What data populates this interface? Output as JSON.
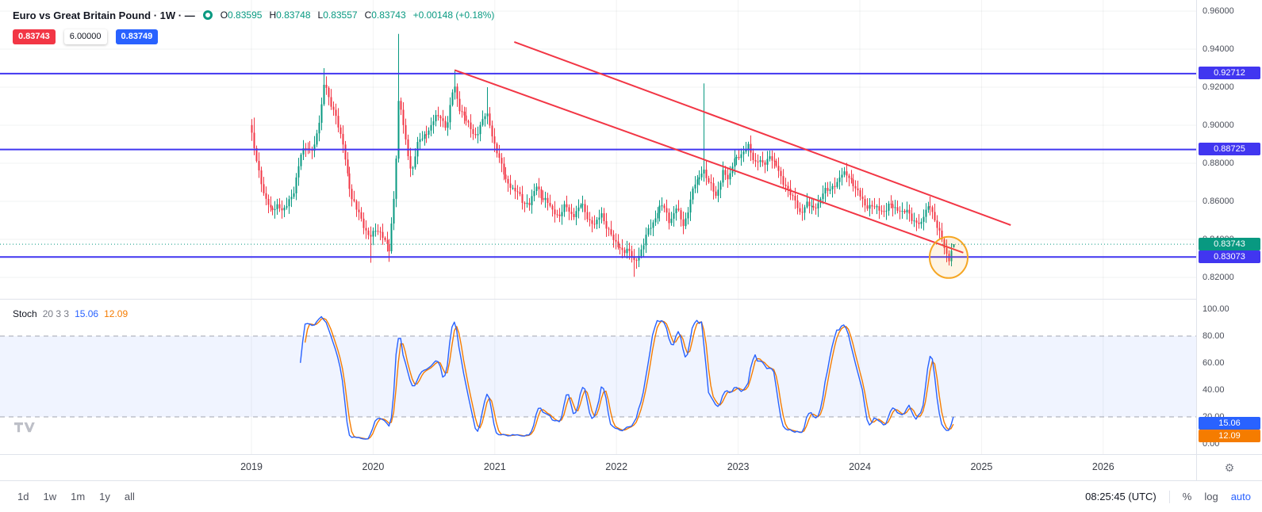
{
  "header": {
    "title": "Euro vs Great Britain Pound · 1W · —",
    "ohlc": {
      "o_label": "O",
      "o": "0.83595",
      "h_label": "H",
      "h": "0.83748",
      "l_label": "L",
      "l": "0.83557",
      "c_label": "C",
      "c": "0.83743",
      "change": "+0.00148 (+0.18%)"
    },
    "badges": {
      "sell": "0.83743",
      "spread": "6.00000",
      "buy": "0.83749"
    }
  },
  "price_axis": {
    "ticks": [
      {
        "v": 0.96,
        "label": "0.96000"
      },
      {
        "v": 0.94,
        "label": "0.94000"
      },
      {
        "v": 0.92,
        "label": "0.92000"
      },
      {
        "v": 0.9,
        "label": "0.90000"
      },
      {
        "v": 0.88,
        "label": "0.88000"
      },
      {
        "v": 0.86,
        "label": "0.86000"
      },
      {
        "v": 0.84,
        "label": "0.84000"
      },
      {
        "v": 0.82,
        "label": "0.82000"
      }
    ],
    "level_badges": [
      {
        "label": "0.92712",
        "price": 0.92712
      },
      {
        "label": "0.88725",
        "price": 0.88725
      },
      {
        "label": "0.83073",
        "price": 0.83073
      }
    ],
    "last_price_badge": {
      "label": "0.83743",
      "price": 0.83743
    }
  },
  "stoch": {
    "title": "Stoch",
    "params": "20 3 3",
    "k_label": "15.06",
    "d_label": "12.09",
    "k_value": 15.06,
    "d_value": 12.09,
    "upper_band": 80,
    "lower_band": 20,
    "ticks": [
      {
        "v": 100,
        "label": "100.00"
      },
      {
        "v": 80,
        "label": "80.00"
      },
      {
        "v": 60,
        "label": "60.00"
      },
      {
        "v": 40,
        "label": "40.00"
      },
      {
        "v": 20,
        "label": "20.00"
      },
      {
        "v": 0,
        "label": "0.00"
      }
    ]
  },
  "time_axis": {
    "years": [
      2019,
      2020,
      2021,
      2022,
      2023,
      2024,
      2025,
      2026
    ]
  },
  "toolbar": {
    "ranges": [
      "1d",
      "1w",
      "1m",
      "1y",
      "all"
    ],
    "clock": "08:25:45 (UTC)",
    "percent_label": "%",
    "log_label": "log",
    "auto_label": "auto"
  },
  "colors": {
    "up": "#089981",
    "down": "#f23645",
    "level": "#4136f0",
    "trend": "#f23645",
    "highlight": "#f5a623",
    "k": "#2962ff",
    "d": "#f57c00",
    "band_fill": "rgba(41,98,255,0.07)",
    "dashed": "#787b86",
    "last_price": "#089981"
  },
  "chart_data": {
    "type": "candlestick",
    "title": "Euro vs Great Britain Pound",
    "interval": "1W",
    "t_start": 2019.0,
    "t_end": 2024.77,
    "weeks_per_year": 52.18,
    "price_ticks": [
      0.96,
      0.94,
      0.92,
      0.9,
      0.88,
      0.86,
      0.84,
      0.82
    ],
    "ylim": [
      0.807,
      0.963
    ],
    "noise_amp": 0.0028,
    "wick_amp": 0.0045,
    "keypoints": [
      [
        2019.0,
        0.895
      ],
      [
        2019.05,
        0.876
      ],
      [
        2019.1,
        0.865
      ],
      [
        2019.16,
        0.8535
      ],
      [
        2019.22,
        0.8585
      ],
      [
        2019.28,
        0.8555
      ],
      [
        2019.34,
        0.864
      ],
      [
        2019.4,
        0.8855
      ],
      [
        2019.46,
        0.887
      ],
      [
        2019.52,
        0.89
      ],
      [
        2019.57,
        0.906
      ],
      [
        2019.6,
        0.924
      ],
      [
        2019.64,
        0.914
      ],
      [
        2019.7,
        0.901
      ],
      [
        2019.76,
        0.887
      ],
      [
        2019.82,
        0.86
      ],
      [
        2019.88,
        0.855
      ],
      [
        2019.93,
        0.846
      ],
      [
        2019.97,
        0.839
      ],
      [
        2020.02,
        0.847
      ],
      [
        2020.07,
        0.842
      ],
      [
        2020.13,
        0.833
      ],
      [
        2020.18,
        0.872
      ],
      [
        2020.21,
        0.915
      ],
      [
        2020.26,
        0.893
      ],
      [
        2020.31,
        0.876
      ],
      [
        2020.37,
        0.891
      ],
      [
        2020.43,
        0.896
      ],
      [
        2020.49,
        0.901
      ],
      [
        2020.55,
        0.906
      ],
      [
        2020.6,
        0.898
      ],
      [
        2020.66,
        0.921
      ],
      [
        2020.71,
        0.909
      ],
      [
        2020.77,
        0.901
      ],
      [
        2020.83,
        0.895
      ],
      [
        2020.89,
        0.9
      ],
      [
        2020.93,
        0.907
      ],
      [
        2020.98,
        0.894
      ],
      [
        2021.04,
        0.879
      ],
      [
        2021.1,
        0.871
      ],
      [
        2021.16,
        0.865
      ],
      [
        2021.22,
        0.8615
      ],
      [
        2021.28,
        0.858
      ],
      [
        2021.34,
        0.868
      ],
      [
        2021.4,
        0.8615
      ],
      [
        2021.46,
        0.856
      ],
      [
        2021.52,
        0.853
      ],
      [
        2021.58,
        0.8565
      ],
      [
        2021.64,
        0.853
      ],
      [
        2021.7,
        0.858
      ],
      [
        2021.76,
        0.8525
      ],
      [
        2021.82,
        0.847
      ],
      [
        2021.87,
        0.853
      ],
      [
        2021.92,
        0.8475
      ],
      [
        2021.97,
        0.8385
      ],
      [
        2022.02,
        0.836
      ],
      [
        2022.08,
        0.8345
      ],
      [
        2022.14,
        0.8285
      ],
      [
        2022.19,
        0.833
      ],
      [
        2022.25,
        0.8425
      ],
      [
        2022.31,
        0.852
      ],
      [
        2022.37,
        0.858
      ],
      [
        2022.43,
        0.8505
      ],
      [
        2022.49,
        0.856
      ],
      [
        2022.55,
        0.8465
      ],
      [
        2022.61,
        0.864
      ],
      [
        2022.66,
        0.87
      ],
      [
        2022.71,
        0.878
      ],
      [
        2022.76,
        0.8695
      ],
      [
        2022.81,
        0.862
      ],
      [
        2022.87,
        0.876
      ],
      [
        2022.92,
        0.87
      ],
      [
        2022.97,
        0.885
      ],
      [
        2023.03,
        0.883
      ],
      [
        2023.08,
        0.8895
      ],
      [
        2023.14,
        0.881
      ],
      [
        2023.2,
        0.879
      ],
      [
        2023.26,
        0.885
      ],
      [
        2023.32,
        0.876
      ],
      [
        2023.38,
        0.87
      ],
      [
        2023.44,
        0.862
      ],
      [
        2023.5,
        0.855
      ],
      [
        2023.56,
        0.858
      ],
      [
        2023.62,
        0.856
      ],
      [
        2023.68,
        0.8625
      ],
      [
        2023.74,
        0.866
      ],
      [
        2023.8,
        0.87
      ],
      [
        2023.86,
        0.8735
      ],
      [
        2023.9,
        0.875
      ],
      [
        2023.95,
        0.868
      ],
      [
        2024.0,
        0.862
      ],
      [
        2024.08,
        0.857
      ],
      [
        2024.16,
        0.8555
      ],
      [
        2024.25,
        0.857
      ],
      [
        2024.33,
        0.856
      ],
      [
        2024.42,
        0.8515
      ],
      [
        2024.5,
        0.848
      ],
      [
        2024.55,
        0.856
      ],
      [
        2024.58,
        0.86
      ],
      [
        2024.62,
        0.848
      ],
      [
        2024.66,
        0.842
      ],
      [
        2024.7,
        0.834
      ],
      [
        2024.73,
        0.831
      ],
      [
        2024.77,
        0.8374
      ]
    ],
    "spikes_high": [
      [
        2019.02,
        0.904
      ],
      [
        2019.6,
        0.93
      ],
      [
        2020.21,
        0.948
      ],
      [
        2020.66,
        0.9292
      ],
      [
        2020.93,
        0.92
      ],
      [
        2022.71,
        0.922
      ],
      [
        2024.58,
        0.8625
      ]
    ],
    "spikes_low": [
      [
        2019.97,
        0.8277
      ],
      [
        2020.13,
        0.8282
      ],
      [
        2022.14,
        0.8203
      ],
      [
        2024.73,
        0.8295
      ]
    ],
    "last_candle": {
      "o": 0.83595,
      "h": 0.83748,
      "l": 0.83557,
      "c": 0.83743
    },
    "levels": [
      0.92712,
      0.88725,
      0.83073
    ],
    "last_price": 0.83743,
    "trendlines": [
      {
        "t1": 2021.16,
        "p1": 0.9438,
        "t2": 2025.24,
        "p2": 0.8475
      },
      {
        "t1": 2020.67,
        "p1": 0.929,
        "t2": 2024.85,
        "p2": 0.833
      }
    ],
    "highlight_circle": {
      "t": 2024.73,
      "price": 0.8305
    },
    "stoch": {
      "period": 20,
      "k_smooth": 3,
      "d_smooth": 3
    }
  }
}
